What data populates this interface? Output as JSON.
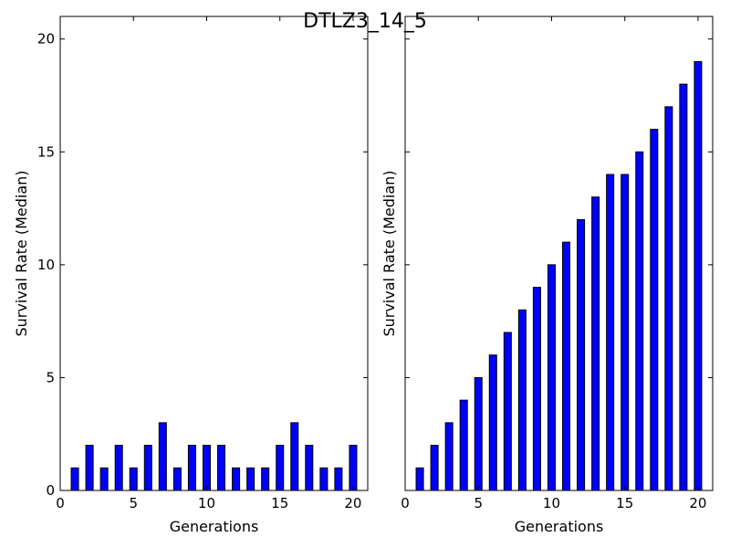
{
  "figure": {
    "title": "DTLZ3_14_5"
  },
  "chart_data": [
    {
      "type": "bar",
      "xlabel": "Generations",
      "ylabel": "Survival Rate (Median)",
      "xlim": [
        0,
        21
      ],
      "ylim": [
        0,
        21
      ],
      "xticks": [
        0,
        5,
        10,
        15,
        20
      ],
      "yticks": [
        0,
        5,
        10,
        15,
        20
      ],
      "show_yticklabels": true,
      "bar_color": "#0000ff",
      "grid": false,
      "x": [
        1,
        2,
        3,
        4,
        5,
        6,
        7,
        8,
        9,
        10,
        11,
        12,
        13,
        14,
        15,
        16,
        17,
        18,
        19,
        20
      ],
      "values": [
        1,
        2,
        1,
        2,
        1,
        2,
        3,
        1,
        2,
        2,
        2,
        1,
        1,
        1,
        2,
        3,
        2,
        1,
        1,
        2
      ]
    },
    {
      "type": "bar",
      "xlabel": "Generations",
      "ylabel": "Survival Rate (Median)",
      "xlim": [
        0,
        21
      ],
      "ylim": [
        0,
        21
      ],
      "xticks": [
        0,
        5,
        10,
        15,
        20
      ],
      "yticks": [
        0,
        5,
        10,
        15,
        20
      ],
      "show_yticklabels": false,
      "bar_color": "#0000ff",
      "grid": false,
      "x": [
        1,
        2,
        3,
        4,
        5,
        6,
        7,
        8,
        9,
        10,
        11,
        12,
        13,
        14,
        15,
        16,
        17,
        18,
        19,
        20
      ],
      "values": [
        1,
        2,
        3,
        4,
        5,
        6,
        7,
        8,
        9,
        10,
        11,
        12,
        13,
        14,
        14,
        15,
        16,
        17,
        18,
        19
      ]
    }
  ]
}
